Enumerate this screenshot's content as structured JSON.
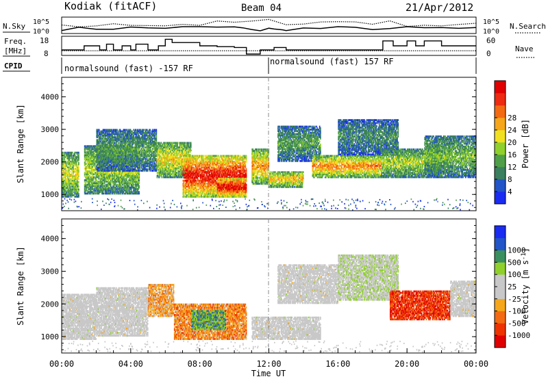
{
  "header": {
    "station": "Kodiak (fitACF)",
    "beam": "Beam 04",
    "date": "21/Apr/2012"
  },
  "chart_data": [
    {
      "type": "line",
      "panel": "noise",
      "left_label": "N.Sky",
      "right_label": "N.Search",
      "left_ticks": [
        "10^5",
        "10^0"
      ],
      "right_ticks": [
        "10^5",
        "10^0"
      ],
      "x_range_hours": [
        0,
        24
      ],
      "series": [
        {
          "style": "solid",
          "x": [
            0,
            1,
            2,
            3,
            4,
            5,
            6,
            7,
            8,
            9,
            10,
            10.5,
            11,
            11.5,
            12,
            12.3,
            12.8,
            13,
            14,
            15,
            16,
            17,
            18,
            19,
            20,
            21,
            22,
            23,
            24
          ],
          "y": [
            1.2,
            1.3,
            1.3,
            1.4,
            1.6,
            1.5,
            1.6,
            1.7,
            1.7,
            1.8,
            1.7,
            1.4,
            0.6,
            0.8,
            1.6,
            0.9,
            0.6,
            1.1,
            1.3,
            1.4,
            1.5,
            1.4,
            1.4,
            1.3,
            1.5,
            1.4,
            1.5,
            1.3,
            1.2
          ]
        },
        {
          "style": "dotted",
          "x": [
            0,
            1,
            2,
            3,
            4,
            5,
            6,
            7,
            8,
            9,
            10,
            11,
            12,
            13,
            14,
            15,
            16,
            17,
            18,
            19,
            20,
            21,
            22,
            23,
            24
          ],
          "y": [
            1.8,
            2.2,
            2.6,
            2.4,
            2.8,
            3.1,
            2.7,
            3.0,
            2.9,
            3.2,
            3.5,
            3.6,
            3.9,
            3.6,
            3.4,
            3.6,
            3.8,
            3.9,
            3.5,
            3.3,
            3.0,
            2.8,
            2.6,
            2.5,
            2.4
          ]
        }
      ]
    },
    {
      "type": "line",
      "panel": "frequency",
      "left_label_line1": "Freq.",
      "left_label_line2": "[MHz]",
      "right_label": "Nave",
      "left_ticks": [
        "18",
        "8"
      ],
      "right_ticks": [
        "60",
        "0"
      ],
      "x_range_hours": [
        0,
        24
      ],
      "series": [
        {
          "style": "solid",
          "x": [
            0,
            1.3,
            1.8,
            2.2,
            2.6,
            3.0,
            3.5,
            4.0,
            4.3,
            5.0,
            5.6,
            6.0,
            6.4,
            7.0,
            8.0,
            9.0,
            10.0,
            10.7,
            11.0,
            11.5,
            12.0,
            12.3,
            13.0,
            14.0,
            15.0,
            16.0,
            17.0,
            18.0,
            18.6,
            19.2,
            20.0,
            20.5,
            21.0,
            22.0,
            23.0,
            24.0
          ],
          "y": [
            10.5,
            13,
            13,
            10.5,
            14,
            10.5,
            13,
            10.5,
            14,
            10.5,
            13,
            17,
            15,
            15,
            13,
            12.5,
            12,
            8,
            8,
            10.5,
            10.5,
            12,
            10.5,
            10.5,
            10.5,
            10.5,
            10.5,
            10.5,
            16,
            13,
            16,
            13,
            16,
            13,
            13,
            13
          ]
        },
        {
          "style": "dotted",
          "x": [
            0,
            24
          ],
          "y": [
            10,
            10
          ]
        }
      ]
    },
    {
      "type": "table",
      "panel": "cpid",
      "label": "CPID",
      "segments": [
        {
          "start_hour": 0,
          "end_hour": 12,
          "text": "normalsound (fast) -157 RF"
        },
        {
          "start_hour": 12,
          "end_hour": 24,
          "text": "normalsound (fast) 157 RF"
        }
      ]
    },
    {
      "type": "heatmap",
      "panel": "power",
      "ylabel": "Slant Range [km]",
      "yticks": [
        "1000",
        "2000",
        "3000",
        "4000"
      ],
      "ylim": [
        500,
        4600
      ],
      "xlim": [
        0,
        24
      ],
      "colorbar_label": "Power [dB]",
      "colorbar_ticks": [
        "4",
        "8",
        "12",
        "16",
        "20",
        "24",
        "28"
      ],
      "colorbar_colors": [
        "#1a2cf2",
        "#2255c8",
        "#3a7f5e",
        "#4f9f49",
        "#8fd02c",
        "#f0e020",
        "#f5a61a",
        "#f36a13",
        "#ee2a10",
        "#e00000"
      ],
      "bands": [
        {
          "t0": 0.0,
          "t1": 1.0,
          "r0": 900,
          "r1": 2300,
          "p": 0.55
        },
        {
          "t0": 1.3,
          "t1": 4.5,
          "r0": 1000,
          "r1": 2500,
          "p": 0.5
        },
        {
          "t0": 2.0,
          "t1": 5.5,
          "r0": 1700,
          "r1": 3000,
          "p": 0.35
        },
        {
          "t0": 5.5,
          "t1": 7.5,
          "r0": 1500,
          "r1": 2600,
          "p": 0.6
        },
        {
          "t0": 7.0,
          "t1": 10.7,
          "r0": 900,
          "r1": 2200,
          "p": 0.95
        },
        {
          "t0": 9.0,
          "t1": 10.7,
          "r0": 900,
          "r1": 1500,
          "p": 0.98
        },
        {
          "t0": 11.0,
          "t1": 12.0,
          "r0": 1300,
          "r1": 2400,
          "p": 0.7
        },
        {
          "t0": 12.0,
          "t1": 14.0,
          "r0": 1200,
          "r1": 1700,
          "p": 0.65
        },
        {
          "t0": 12.5,
          "t1": 15.0,
          "r0": 2000,
          "r1": 3100,
          "p": 0.35
        },
        {
          "t0": 14.5,
          "t1": 18.5,
          "r0": 1500,
          "r1": 2200,
          "p": 0.72
        },
        {
          "t0": 16.0,
          "t1": 19.5,
          "r0": 2200,
          "r1": 3300,
          "p": 0.3
        },
        {
          "t0": 18.5,
          "t1": 22.0,
          "r0": 1500,
          "r1": 2400,
          "p": 0.5
        },
        {
          "t0": 21.0,
          "t1": 24.0,
          "r0": 1500,
          "r1": 2800,
          "p": 0.42
        }
      ]
    },
    {
      "type": "heatmap",
      "panel": "velocity",
      "ylabel": "Slant Range [km]",
      "xlabel": "Time UT",
      "yticks": [
        "1000",
        "2000",
        "3000",
        "4000"
      ],
      "ylim": [
        500,
        4600
      ],
      "xlim": [
        0,
        24
      ],
      "xticks": [
        "00:00",
        "04:00",
        "08:00",
        "12:00",
        "16:00",
        "20:00",
        "00:00"
      ],
      "colorbar_label": "Velocity [m s",
      "colorbar_label_sup": "-1",
      "colorbar_label_end": "]",
      "colorbar_ticks": [
        "-1000",
        "-500",
        "-100",
        "-25",
        "25",
        "100",
        "500",
        "1000"
      ],
      "colorbar_colors": [
        "#e00000",
        "#ee3300",
        "#f36a13",
        "#f5a61a",
        "#c8c8c8",
        "#c8c8c8",
        "#8fd02c",
        "#3a8f5e",
        "#2255c8",
        "#1a2cf2"
      ],
      "bands": [
        {
          "t0": 0.0,
          "t1": 2.0,
          "r0": 900,
          "r1": 2300,
          "v": 0.0
        },
        {
          "t0": 2.0,
          "t1": 5.0,
          "r0": 1000,
          "r1": 2500,
          "v": 0.0
        },
        {
          "t0": 5.0,
          "t1": 6.5,
          "r0": 1600,
          "r1": 2600,
          "v": -0.3
        },
        {
          "t0": 6.5,
          "t1": 10.7,
          "r0": 900,
          "r1": 2000,
          "v": -0.4
        },
        {
          "t0": 7.5,
          "t1": 9.5,
          "r0": 1200,
          "r1": 1800,
          "v": 0.45
        },
        {
          "t0": 11.0,
          "t1": 15.0,
          "r0": 900,
          "r1": 1600,
          "v": 0.0
        },
        {
          "t0": 12.5,
          "t1": 16.0,
          "r0": 2000,
          "r1": 3200,
          "v": 0.0
        },
        {
          "t0": 16.0,
          "t1": 19.5,
          "r0": 2100,
          "r1": 3500,
          "v": 0.1
        },
        {
          "t0": 19.0,
          "t1": 22.5,
          "r0": 1500,
          "r1": 2400,
          "v": -0.7
        },
        {
          "t0": 22.5,
          "t1": 24.0,
          "r0": 1600,
          "r1": 2700,
          "v": 0.0
        }
      ]
    }
  ]
}
